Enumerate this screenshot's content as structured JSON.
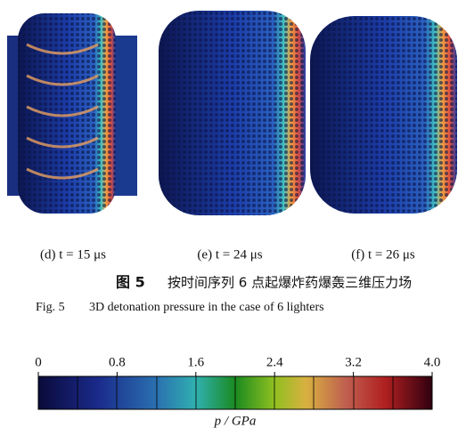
{
  "panels": [
    {
      "label": "(d) t = 15 μs"
    },
    {
      "label": "(e) t = 24 μs"
    },
    {
      "label": "(f) t = 26 μs"
    }
  ],
  "caption": {
    "figure_label": "图 5",
    "title": "按时间序列 6 点起爆炸药爆轰三维压力场",
    "english_label": "Fig. 5",
    "english_title": "3D detonation pressure in the case of 6 lighters"
  },
  "colorbar": {
    "label": "p / GPa",
    "lim": [
      0,
      4
    ],
    "ticks": [
      0,
      0.8,
      1.6,
      2.4,
      3.2,
      {
        "value": 4,
        "label": "4.0"
      }
    ]
  }
}
